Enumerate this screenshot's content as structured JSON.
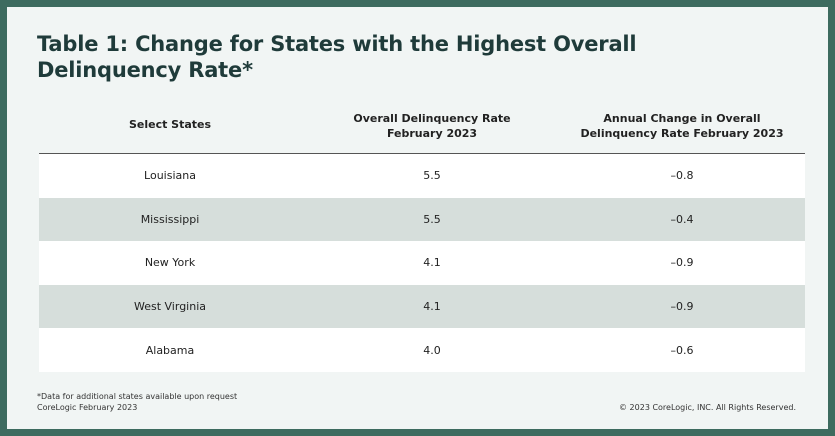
{
  "title": "Table 1: Change for States with the Highest Overall Delinquency Rate*",
  "columns": {
    "state": "Select States",
    "rate_line1": "Overall Delinquency Rate",
    "rate_line2": "February 2023",
    "change_line1": "Annual Change in Overall",
    "change_line2": "Delinquency Rate February 2023"
  },
  "rows": [
    {
      "state": "Louisiana",
      "rate": "5.5",
      "change": "–0.8"
    },
    {
      "state": "Mississippi",
      "rate": "5.5",
      "change": "–0.4"
    },
    {
      "state": "New York",
      "rate": "4.1",
      "change": "–0.9"
    },
    {
      "state": "West Virginia",
      "rate": "4.1",
      "change": "–0.9"
    },
    {
      "state": "Alabama",
      "rate": "4.0",
      "change": "–0.6"
    }
  ],
  "footnote": {
    "line1": "*Data for additional states available upon request",
    "line2": "CoreLogic February 2023"
  },
  "copyright": "© 2023 CoreLogic, INC. All Rights Reserved.",
  "colors": {
    "border": "#3d6b5f",
    "background": "#f1f5f4",
    "stripe": "#d6dedb",
    "title": "#1f3b3a"
  }
}
